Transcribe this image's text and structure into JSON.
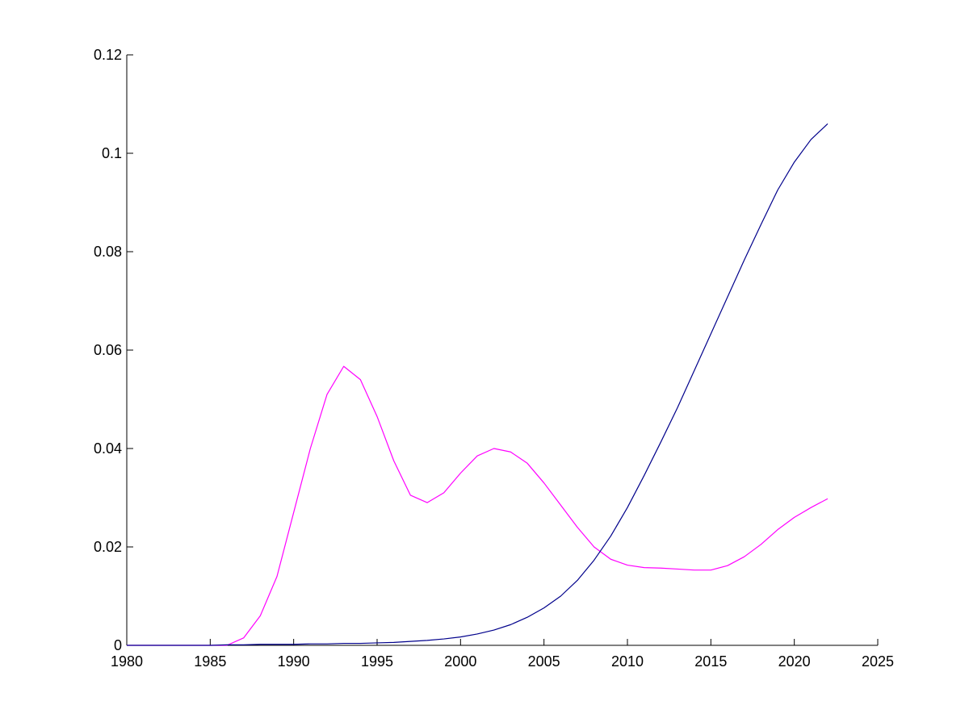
{
  "chart_data": {
    "type": "line",
    "title": "",
    "xlabel": "",
    "ylabel": "",
    "xlim": [
      1980,
      2025
    ],
    "ylim": [
      0,
      0.12
    ],
    "xticks": [
      1980,
      1985,
      1990,
      1995,
      2000,
      2005,
      2010,
      2015,
      2020,
      2025
    ],
    "yticks": [
      0,
      0.02,
      0.04,
      0.06,
      0.08,
      0.1,
      0.12
    ],
    "xtick_labels": [
      "1980",
      "1985",
      "1990",
      "1995",
      "2000",
      "2005",
      "2010",
      "2015",
      "2020",
      "2025"
    ],
    "ytick_labels": [
      "0",
      "0.02",
      "0.04",
      "0.06",
      "0.08",
      "0.1",
      "0.12"
    ],
    "grid": false,
    "series": [
      {
        "color": "#ff00ff",
        "x": [
          1980,
          1981,
          1982,
          1983,
          1984,
          1985,
          1986,
          1987,
          1988,
          1989,
          1990,
          1991,
          1992,
          1993,
          1994,
          1995,
          1996,
          1997,
          1998,
          1999,
          2000,
          2001,
          2002,
          2003,
          2004,
          2005,
          2006,
          2007,
          2008,
          2009,
          2010,
          2011,
          2012,
          2013,
          2014,
          2015,
          2016,
          2017,
          2018,
          2019,
          2020,
          2021,
          2022
        ],
        "values": [
          0,
          0,
          0,
          0,
          0,
          0,
          0,
          0.0015,
          0.006,
          0.014,
          0.027,
          0.04,
          0.051,
          0.0567,
          0.054,
          0.0465,
          0.0375,
          0.0305,
          0.029,
          0.031,
          0.035,
          0.0385,
          0.04,
          0.0393,
          0.037,
          0.033,
          0.0285,
          0.024,
          0.02,
          0.0175,
          0.0163,
          0.0158,
          0.0157,
          0.0155,
          0.0153,
          0.0153,
          0.0162,
          0.018,
          0.0205,
          0.0235,
          0.026,
          0.028,
          0.0298
        ]
      },
      {
        "color": "#00008b",
        "x": [
          1980,
          1981,
          1982,
          1983,
          1984,
          1985,
          1986,
          1987,
          1988,
          1989,
          1990,
          1991,
          1992,
          1993,
          1994,
          1995,
          1996,
          1997,
          1998,
          1999,
          2000,
          2001,
          2002,
          2003,
          2004,
          2005,
          2006,
          2007,
          2008,
          2009,
          2010,
          2011,
          2012,
          2013,
          2014,
          2015,
          2016,
          2017,
          2018,
          2019,
          2020,
          2021,
          2022
        ],
        "values": [
          0,
          0,
          0,
          0,
          0,
          0,
          0.0001,
          0.0001,
          0.0002,
          0.0002,
          0.0002,
          0.0003,
          0.0003,
          0.0004,
          0.0004,
          0.0005,
          0.0006,
          0.0008,
          0.001,
          0.0013,
          0.0017,
          0.0023,
          0.0031,
          0.0042,
          0.0057,
          0.0076,
          0.01,
          0.0132,
          0.0173,
          0.0222,
          0.028,
          0.0345,
          0.0413,
          0.0483,
          0.0558,
          0.0633,
          0.0708,
          0.0783,
          0.0855,
          0.0925,
          0.0982,
          0.1028,
          0.106
        ]
      }
    ]
  }
}
